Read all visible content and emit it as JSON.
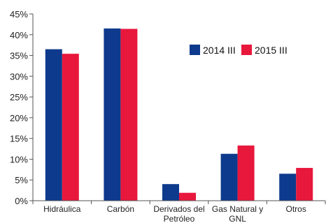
{
  "chart_data": {
    "type": "bar",
    "categories": [
      [
        "Hidráulica"
      ],
      [
        "Carbón"
      ],
      [
        "Derivados del",
        "Petróleo"
      ],
      [
        "Gas Natural y",
        "GNL"
      ],
      [
        "Otros"
      ]
    ],
    "series": [
      {
        "name": "2014 III",
        "color": "#0d3a8c",
        "values": [
          36.5,
          41.5,
          4.0,
          11.3,
          6.5
        ]
      },
      {
        "name": "2015 III",
        "color": "#e8173c",
        "values": [
          35.4,
          41.4,
          1.9,
          13.3,
          7.9
        ]
      }
    ],
    "yticks": [
      "0%",
      "5%",
      "10%",
      "15%",
      "20%",
      "25%",
      "30%",
      "35%",
      "40%",
      "45%"
    ],
    "ylim": [
      0,
      45
    ],
    "legend_position": "top-right",
    "grid": false,
    "title": "",
    "xlabel": "",
    "ylabel": ""
  }
}
